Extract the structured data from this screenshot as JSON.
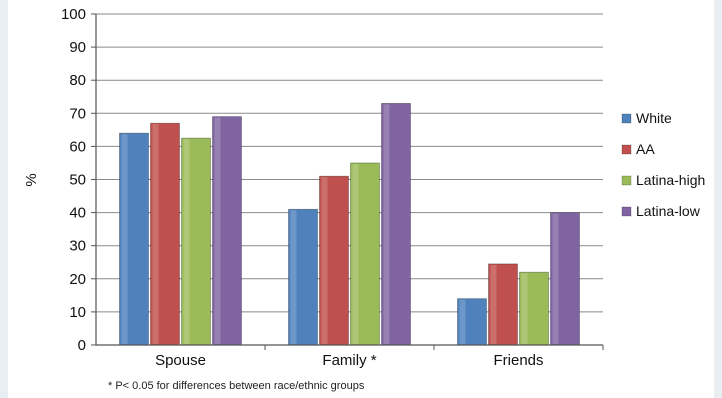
{
  "chart_data": {
    "type": "bar",
    "categories": [
      "Spouse",
      "Family *",
      "Friends"
    ],
    "series": [
      {
        "name": "White",
        "color": "#4f81bd",
        "values": [
          64,
          41,
          14
        ]
      },
      {
        "name": "AA",
        "color": "#c0504d",
        "values": [
          67,
          51,
          24.5
        ]
      },
      {
        "name": "Latina-high",
        "color": "#9bbb59",
        "values": [
          62.5,
          55,
          22
        ]
      },
      {
        "name": "Latina-low",
        "color": "#8064a2",
        "values": [
          69,
          73,
          40
        ]
      }
    ],
    "ylabel": "%",
    "ylim": [
      0,
      100
    ],
    "yticks": [
      0,
      10,
      20,
      30,
      40,
      50,
      60,
      70,
      80,
      90,
      100
    ],
    "grid": true,
    "legend_position": "right",
    "footnote": "* P< 0.05 for differences between race/ethnic groups"
  }
}
